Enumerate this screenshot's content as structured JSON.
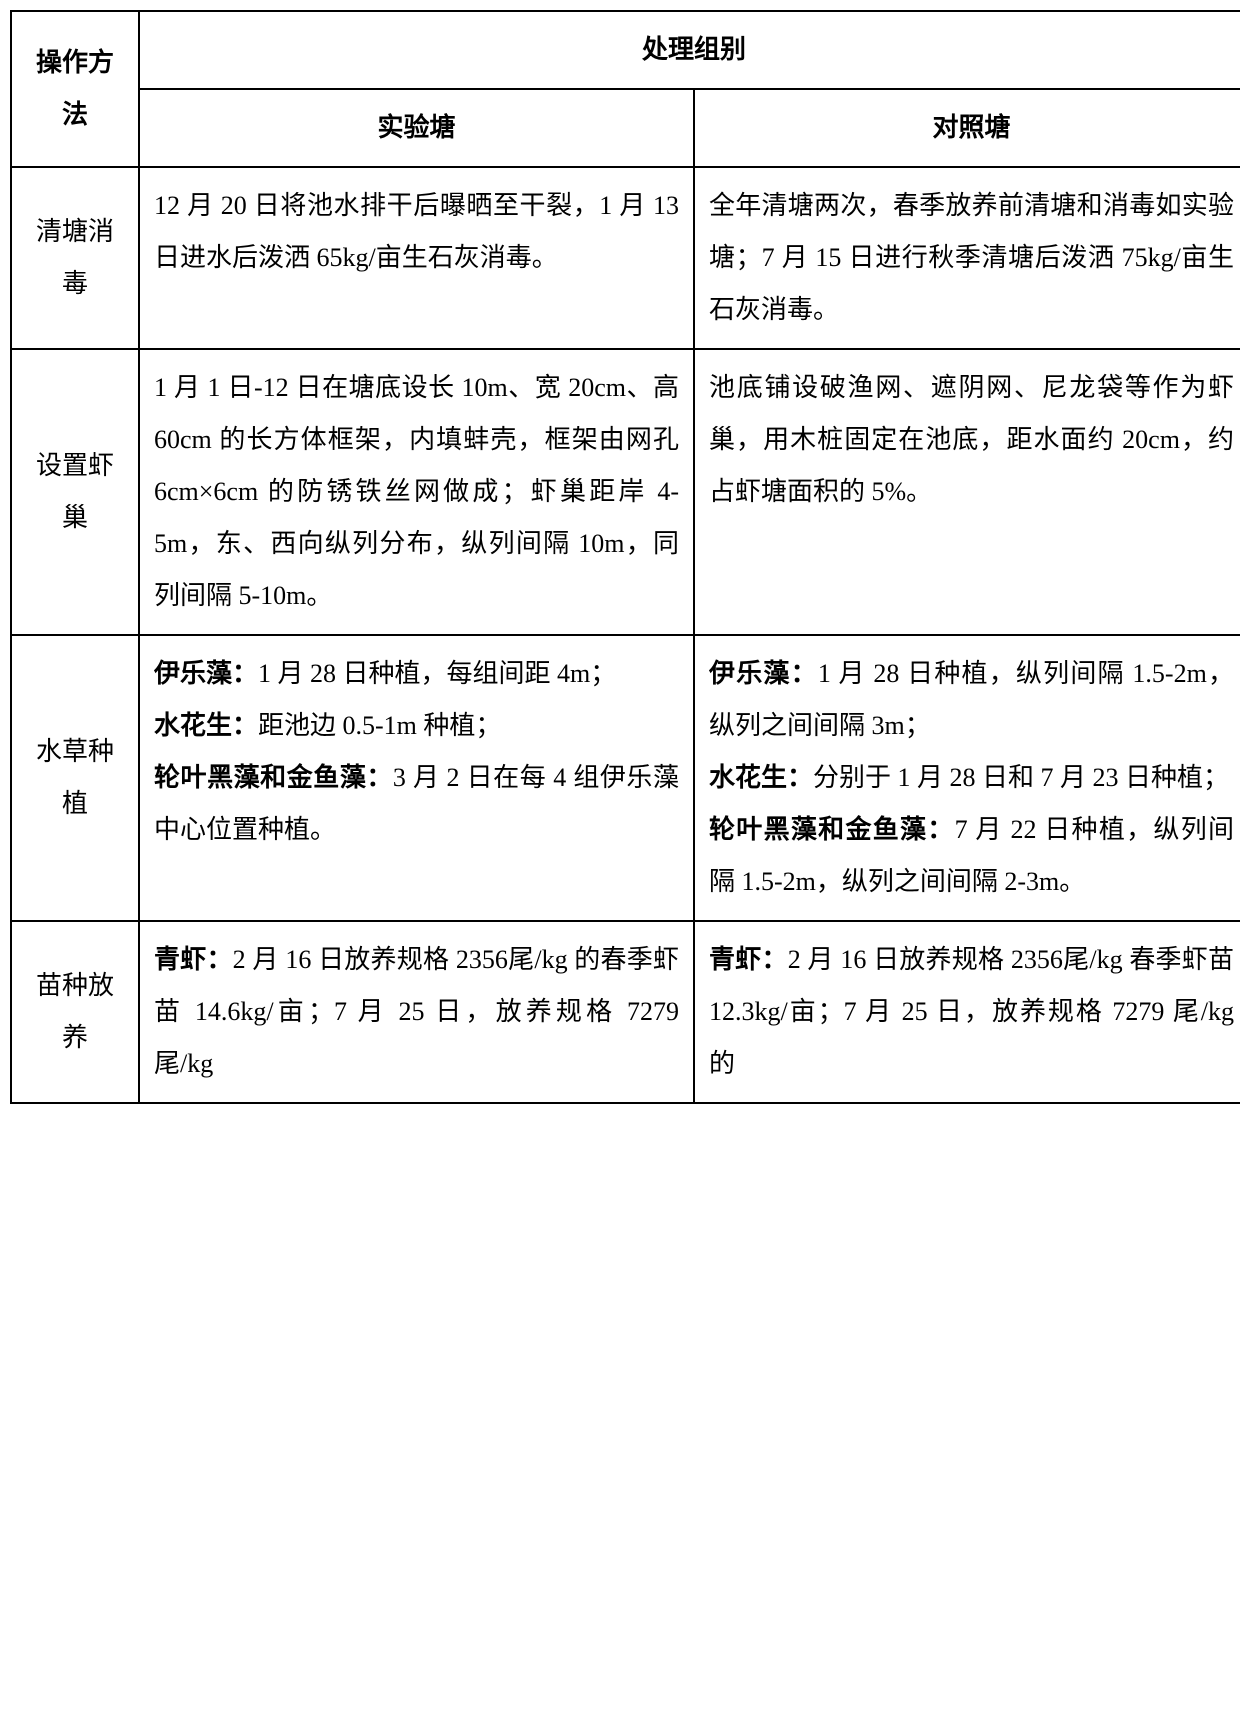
{
  "table": {
    "header": {
      "operation": "操作方法",
      "group_header": "处理组别",
      "experimental": "实验塘",
      "control": "对照塘"
    },
    "rows": {
      "r1": {
        "label": "清塘消毒",
        "exp": "12 月 20 日将池水排干后曝晒至干裂，1 月 13 日进水后泼洒 65kg/亩生石灰消毒。",
        "ctrl": "全年清塘两次，春季放养前清塘和消毒如实验塘；7 月 15 日进行秋季清塘后泼洒 75kg/亩生石灰消毒。"
      },
      "r2": {
        "label": "设置虾巢",
        "exp": "1 月 1 日-12 日在塘底设长 10m、宽 20cm、高 60cm 的长方体框架，内填蚌壳，框架由网孔 6cm×6cm 的防锈铁丝网做成；虾巢距岸 4-5m，东、西向纵列分布，纵列间隔 10m，同列间隔 5-10m。",
        "ctrl": "池底铺设破渔网、遮阴网、尼龙袋等作为虾巢，用木桩固定在池底，距水面约 20cm，约占虾塘面积的 5%。"
      },
      "r3": {
        "label": "水草种植",
        "exp_parts": {
          "p1_bold": "伊乐藻：",
          "p1_text": "1 月 28 日种植，每组间距 4m；",
          "p2_bold": "水花生：",
          "p2_text": "距池边 0.5-1m 种植；",
          "p3_bold": "轮叶黑藻和金鱼藻：",
          "p3_text": "3 月 2 日在每 4 组伊乐藻中心位置种植。"
        },
        "ctrl_parts": {
          "p1_bold": "伊乐藻：",
          "p1_text": "1 月 28 日种植，纵列间隔 1.5-2m，纵列之间间隔 3m；",
          "p2_bold": "水花生：",
          "p2_text": "分别于 1 月 28 日和 7 月 23 日种植；",
          "p3_bold": "轮叶黑藻和金鱼藻：",
          "p3_text": "7 月 22 日种植，纵列间隔 1.5-2m，纵列之间间隔 2-3m。"
        }
      },
      "r4": {
        "label": "苗种放养",
        "exp_parts": {
          "p1_bold": "青虾：",
          "p1_text": "2 月 16 日放养规格 2356尾/kg 的春季虾苗 14.6kg/亩；7 月 25 日，放养规格 7279 尾/kg"
        },
        "ctrl_parts": {
          "p1_bold": "青虾：",
          "p1_text": "2 月 16 日放养规格 2356尾/kg 春季虾苗 12.3kg/亩；7 月 25 日，放养规格 7279 尾/kg 的"
        }
      }
    }
  }
}
